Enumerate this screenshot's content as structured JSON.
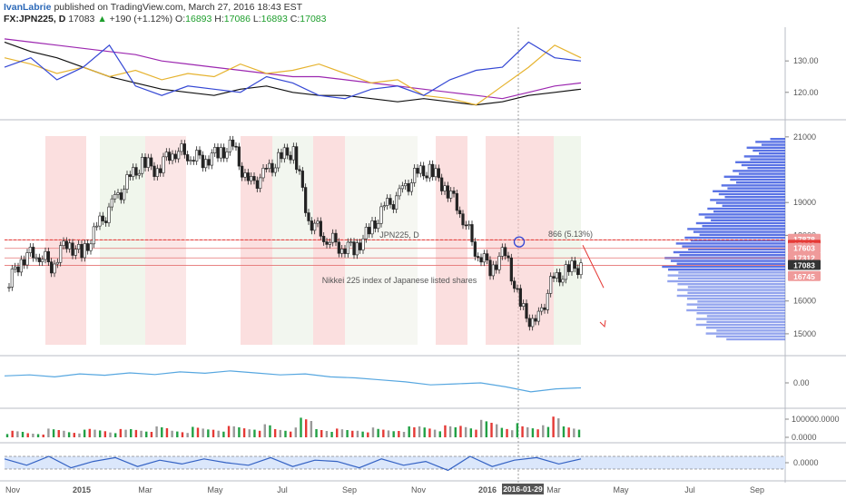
{
  "header": {
    "author": "IvanLabrie",
    "published": " published on TradingView.com, March 27, 2016 18:43 EST",
    "symbol": "FX:JPN225, D",
    "last": "17083",
    "change": "+190 (+1.12%)",
    "open_label": "O:",
    "open": "16893",
    "high_label": "H:",
    "high": "17086",
    "low_label": "L:",
    "low": "16893",
    "close_label": "C:",
    "close": "17083"
  },
  "watermark": {
    "symbol": "JPN225, D",
    "description": "Nikkei 225 index of Japanese listed shares"
  },
  "annotations": {
    "projection": "866 (5.13%)"
  },
  "colors": {
    "up": "#22a045",
    "down": "#e53935",
    "blue": "#3447d4",
    "purple": "#9c27b0",
    "gold": "#e6b32f",
    "volume_profile": "#3d5be0",
    "tag_red": "#e53935",
    "tag_dark": "#333333"
  },
  "chart_data": [
    {
      "type": "line",
      "panel": "comparison",
      "right_axis": [
        "130.00",
        "120.00"
      ],
      "ylim": [
        113,
        139
      ],
      "series": [
        {
          "color": "black",
          "values": [
            136,
            133,
            131,
            128,
            125,
            123,
            121,
            120,
            119,
            121,
            122,
            120,
            119,
            119,
            118,
            117,
            118,
            117,
            116,
            117,
            119,
            120,
            121
          ]
        },
        {
          "color": "purple",
          "values": [
            137,
            136,
            135,
            134,
            133,
            132,
            130,
            129,
            128,
            127,
            126,
            125,
            125,
            124,
            123,
            122,
            121,
            120,
            119,
            118,
            120,
            122,
            123
          ]
        },
        {
          "color": "gold",
          "values": [
            131,
            129,
            126,
            128,
            125,
            127,
            124,
            126,
            125,
            129,
            126,
            127,
            129,
            126,
            123,
            124,
            119,
            118,
            116,
            122,
            128,
            135,
            131
          ]
        },
        {
          "color": "blue",
          "values": [
            128,
            131,
            124,
            128,
            135,
            122,
            119,
            122,
            121,
            120,
            125,
            123,
            119,
            118,
            121,
            122,
            119,
            124,
            127,
            128,
            136,
            131,
            130
          ]
        }
      ]
    },
    {
      "type": "candlestick",
      "panel": "main",
      "x_labels": [
        "Nov",
        "2015",
        "Mar",
        "May",
        "Jul",
        "Sep",
        "Nov",
        "2016",
        "2016-01-29",
        "Mar",
        "May",
        "Jul",
        "Sep"
      ],
      "y_ticks": [
        "21000",
        "19000",
        "18000",
        "16000",
        "15000"
      ],
      "ylim": [
        14500,
        21300
      ],
      "close": [
        16400,
        17300,
        17500,
        17100,
        17800,
        17400,
        18200,
        18900,
        19600,
        20200,
        20000,
        20600,
        20500,
        20300,
        20500,
        20700,
        19500,
        19800,
        20300,
        20600,
        18500,
        18000,
        17700,
        17600,
        18100,
        18800,
        19200,
        19800,
        20000,
        19500,
        18800,
        17600,
        17000,
        17500,
        15800,
        15200,
        16500,
        16900,
        17083
      ],
      "markers": {
        "pivot_high": 17800,
        "projection_target": 17863
      },
      "price_tags": [
        {
          "value": "17878"
        },
        {
          "value": "17863"
        },
        {
          "value": "17603"
        },
        {
          "value": "17312"
        },
        {
          "value": "17083"
        },
        {
          "value": "16745"
        }
      ]
    },
    {
      "type": "line",
      "panel": "oscillator",
      "right_axis": [
        "0.00"
      ],
      "ylim": [
        -1,
        1
      ],
      "values": [
        0.35,
        0.4,
        0.3,
        0.45,
        0.38,
        0.5,
        0.42,
        0.55,
        0.48,
        0.6,
        0.5,
        0.4,
        0.45,
        0.3,
        0.25,
        0.15,
        0.05,
        -0.1,
        -0.05,
        0.0,
        -0.2,
        -0.45,
        -0.3,
        -0.25
      ]
    },
    {
      "type": "bar",
      "panel": "volume",
      "right_axis": [
        "100000.0000",
        "0.0000"
      ],
      "ylim": [
        0,
        120000
      ],
      "values": [
        30000,
        25000,
        40000,
        35000,
        42000,
        38000,
        45000,
        50000,
        40000,
        48000,
        52000,
        55000,
        60000,
        45000,
        90000,
        50000,
        40000,
        45000,
        42000,
        50000,
        60000,
        55000,
        70000,
        80000,
        65000,
        55000,
        95000,
        60000
      ]
    },
    {
      "type": "area",
      "panel": "momentum",
      "right_axis": [
        "0.0000"
      ],
      "ylim": [
        -1,
        1
      ],
      "values": [
        0.3,
        -0.2,
        0.5,
        -0.4,
        0.1,
        0.4,
        -0.3,
        0.2,
        -0.1,
        0.3,
        0.0,
        -0.2,
        0.4,
        -0.3,
        0.2,
        0.1,
        -0.4,
        0.3,
        -0.2,
        0.1,
        -0.6,
        0.5,
        -0.3,
        0.2,
        0.4,
        -0.1,
        0.3
      ]
    }
  ]
}
